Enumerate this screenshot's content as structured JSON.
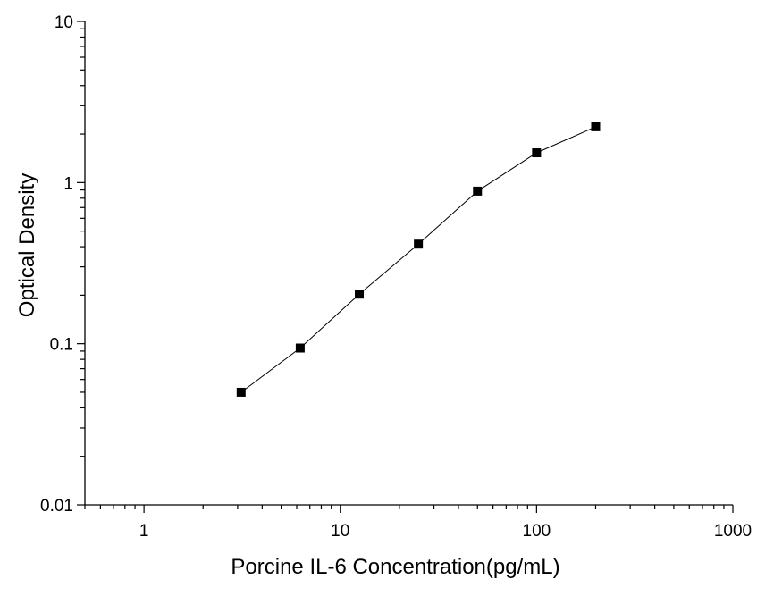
{
  "chart_data": {
    "type": "scatter",
    "x_scale": "log",
    "y_scale": "log",
    "xlabel": "Porcine IL-6 Concentration(pg/mL)",
    "ylabel": "Optical  Density",
    "xlim": [
      0.5,
      1000
    ],
    "ylim": [
      0.01,
      10
    ],
    "x_ticks": [
      {
        "value": 1,
        "label": "1"
      },
      {
        "value": 10,
        "label": "10"
      },
      {
        "value": 100,
        "label": "100"
      },
      {
        "value": 1000,
        "label": "1000"
      }
    ],
    "y_ticks": [
      {
        "value": 0.01,
        "label": "0.01"
      },
      {
        "value": 0.1,
        "label": "0.1"
      },
      {
        "value": 1,
        "label": "1"
      },
      {
        "value": 10,
        "label": "10"
      }
    ],
    "grid": false,
    "series": [
      {
        "marker": "square",
        "connected": true,
        "color": "#000000",
        "x": [
          3.125,
          6.25,
          12.5,
          25,
          50,
          100,
          200
        ],
        "y": [
          0.05,
          0.094,
          0.203,
          0.415,
          0.885,
          1.53,
          2.22
        ]
      }
    ]
  }
}
